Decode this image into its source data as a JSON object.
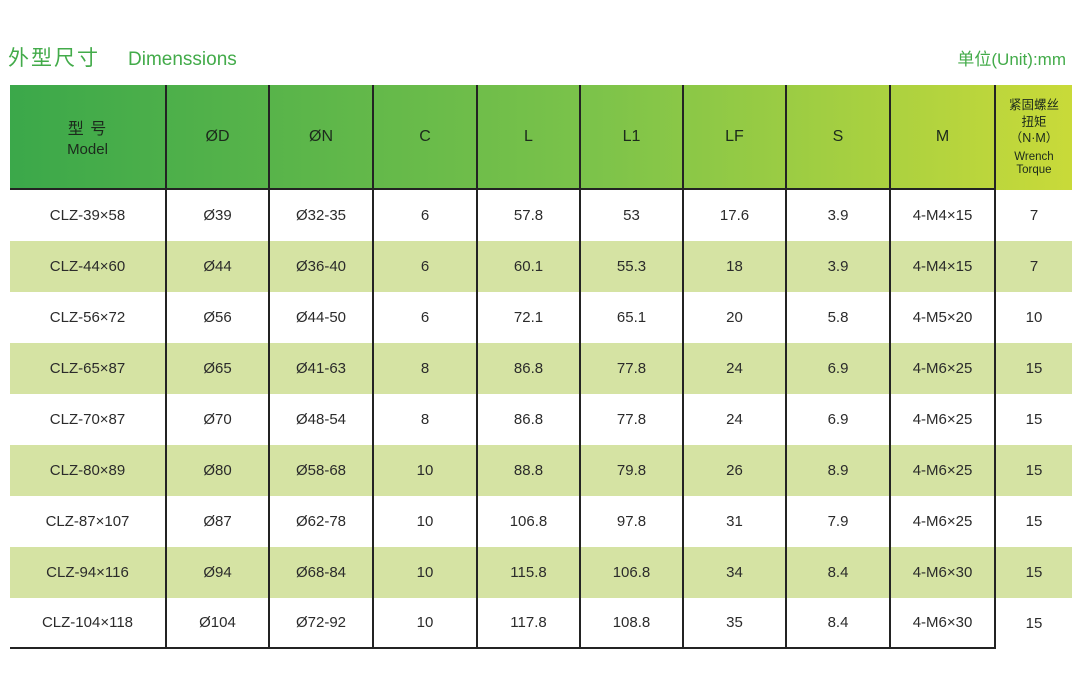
{
  "header": {
    "title_cn": "外型尺寸",
    "title_en": "Dimenssions",
    "unit_label": "单位(Unit):mm"
  },
  "colors": {
    "accent_green": "#43ab4a",
    "header_gradient_start": "#3ba84a",
    "header_gradient_end": "#c9da39",
    "stripe_green": "#d5e3a3",
    "border_dark": "#232323",
    "cell_text": "#2b2b2b"
  },
  "table": {
    "columns": [
      {
        "key": "model",
        "label_cn": "型 号",
        "label_en": "Model"
      },
      {
        "key": "od",
        "label": "ØD"
      },
      {
        "key": "on",
        "label": "ØN"
      },
      {
        "key": "c",
        "label": "C"
      },
      {
        "key": "l",
        "label": "L"
      },
      {
        "key": "l1",
        "label": "L1"
      },
      {
        "key": "lf",
        "label": "LF"
      },
      {
        "key": "s",
        "label": "S"
      },
      {
        "key": "m",
        "label": "M"
      },
      {
        "key": "torque",
        "label_cn_line1": "紧固螺丝",
        "label_cn_line2": "扭矩",
        "label_cn_line3": "（N·M）",
        "label_en_line1": "Wrench",
        "label_en_line2": "Torque"
      }
    ],
    "rows": [
      [
        "CLZ-39×58",
        "Ø39",
        "Ø32-35",
        "6",
        "57.8",
        "53",
        "17.6",
        "3.9",
        "4-M4×15",
        "7"
      ],
      [
        "CLZ-44×60",
        "Ø44",
        "Ø36-40",
        "6",
        "60.1",
        "55.3",
        "18",
        "3.9",
        "4-M4×15",
        "7"
      ],
      [
        "CLZ-56×72",
        "Ø56",
        "Ø44-50",
        "6",
        "72.1",
        "65.1",
        "20",
        "5.8",
        "4-M5×20",
        "10"
      ],
      [
        "CLZ-65×87",
        "Ø65",
        "Ø41-63",
        "8",
        "86.8",
        "77.8",
        "24",
        "6.9",
        "4-M6×25",
        "15"
      ],
      [
        "CLZ-70×87",
        "Ø70",
        "Ø48-54",
        "8",
        "86.8",
        "77.8",
        "24",
        "6.9",
        "4-M6×25",
        "15"
      ],
      [
        "CLZ-80×89",
        "Ø80",
        "Ø58-68",
        "10",
        "88.8",
        "79.8",
        "26",
        "8.9",
        "4-M6×25",
        "15"
      ],
      [
        "CLZ-87×107",
        "Ø87",
        "Ø62-78",
        "10",
        "106.8",
        "97.8",
        "31",
        "7.9",
        "4-M6×25",
        "15"
      ],
      [
        "CLZ-94×116",
        "Ø94",
        "Ø68-84",
        "10",
        "115.8",
        "106.8",
        "34",
        "8.4",
        "4-M6×30",
        "15"
      ],
      [
        "CLZ-104×118",
        "Ø104",
        "Ø72-92",
        "10",
        "117.8",
        "108.8",
        "35",
        "8.4",
        "4-M6×30",
        "15"
      ]
    ]
  }
}
